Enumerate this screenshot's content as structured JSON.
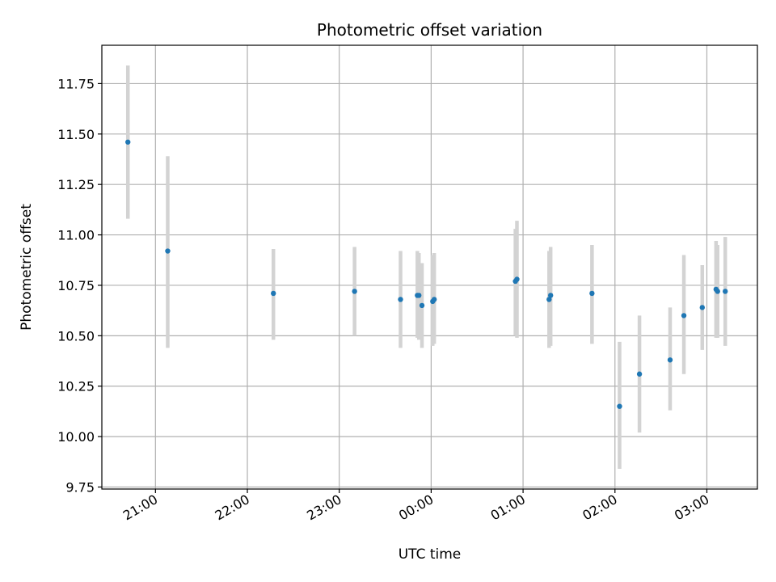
{
  "chart_data": {
    "type": "scatter",
    "title": "Photometric offset variation",
    "xlabel": "UTC time",
    "ylabel": "Photometric offset",
    "x_axis_type": "time",
    "xlim": [
      "20:25",
      "03:33"
    ],
    "ylim": [
      9.74,
      11.94
    ],
    "x_ticks": [
      "21:00",
      "22:00",
      "23:00",
      "00:00",
      "01:00",
      "02:00",
      "03:00"
    ],
    "y_ticks": [
      9.75,
      10.0,
      10.25,
      10.5,
      10.75,
      11.0,
      11.25,
      11.5,
      11.75
    ],
    "y_tick_labels": [
      "9.75",
      "10.00",
      "10.25",
      "10.50",
      "10.75",
      "11.00",
      "11.25",
      "11.50",
      "11.75"
    ],
    "x_tick_label_rotation_deg": 30,
    "grid": true,
    "legend": false,
    "point_color": "#1f77b4",
    "errorbar_color": "#d3d3d3",
    "series": [
      {
        "x": [
          "20:42",
          "21:08",
          "22:17",
          "23:10",
          "23:40",
          "23:51",
          "23:52",
          "23:54",
          "00:01",
          "00:02",
          "00:55",
          "00:56",
          "01:17",
          "01:18",
          "01:45",
          "02:03",
          "02:16",
          "02:36",
          "02:45",
          "02:57",
          "03:06",
          "03:07",
          "03:12"
        ],
        "y": [
          11.46,
          10.92,
          10.71,
          10.72,
          10.68,
          10.7,
          10.7,
          10.65,
          10.67,
          10.68,
          10.77,
          10.78,
          10.68,
          10.7,
          10.71,
          10.15,
          10.31,
          10.38,
          10.6,
          10.64,
          10.73,
          10.72,
          10.72
        ],
        "yerr_low": [
          11.08,
          10.44,
          10.48,
          10.5,
          10.44,
          10.49,
          10.48,
          10.44,
          10.45,
          10.46,
          10.5,
          10.49,
          10.44,
          10.45,
          10.46,
          9.84,
          10.02,
          10.13,
          10.31,
          10.43,
          10.49,
          10.49,
          10.45
        ],
        "yerr_high": [
          11.84,
          11.39,
          10.93,
          10.94,
          10.92,
          10.92,
          10.91,
          10.86,
          10.9,
          10.91,
          11.03,
          11.07,
          10.92,
          10.94,
          10.95,
          10.47,
          10.6,
          10.64,
          10.9,
          10.85,
          10.97,
          10.95,
          10.99
        ]
      }
    ]
  }
}
